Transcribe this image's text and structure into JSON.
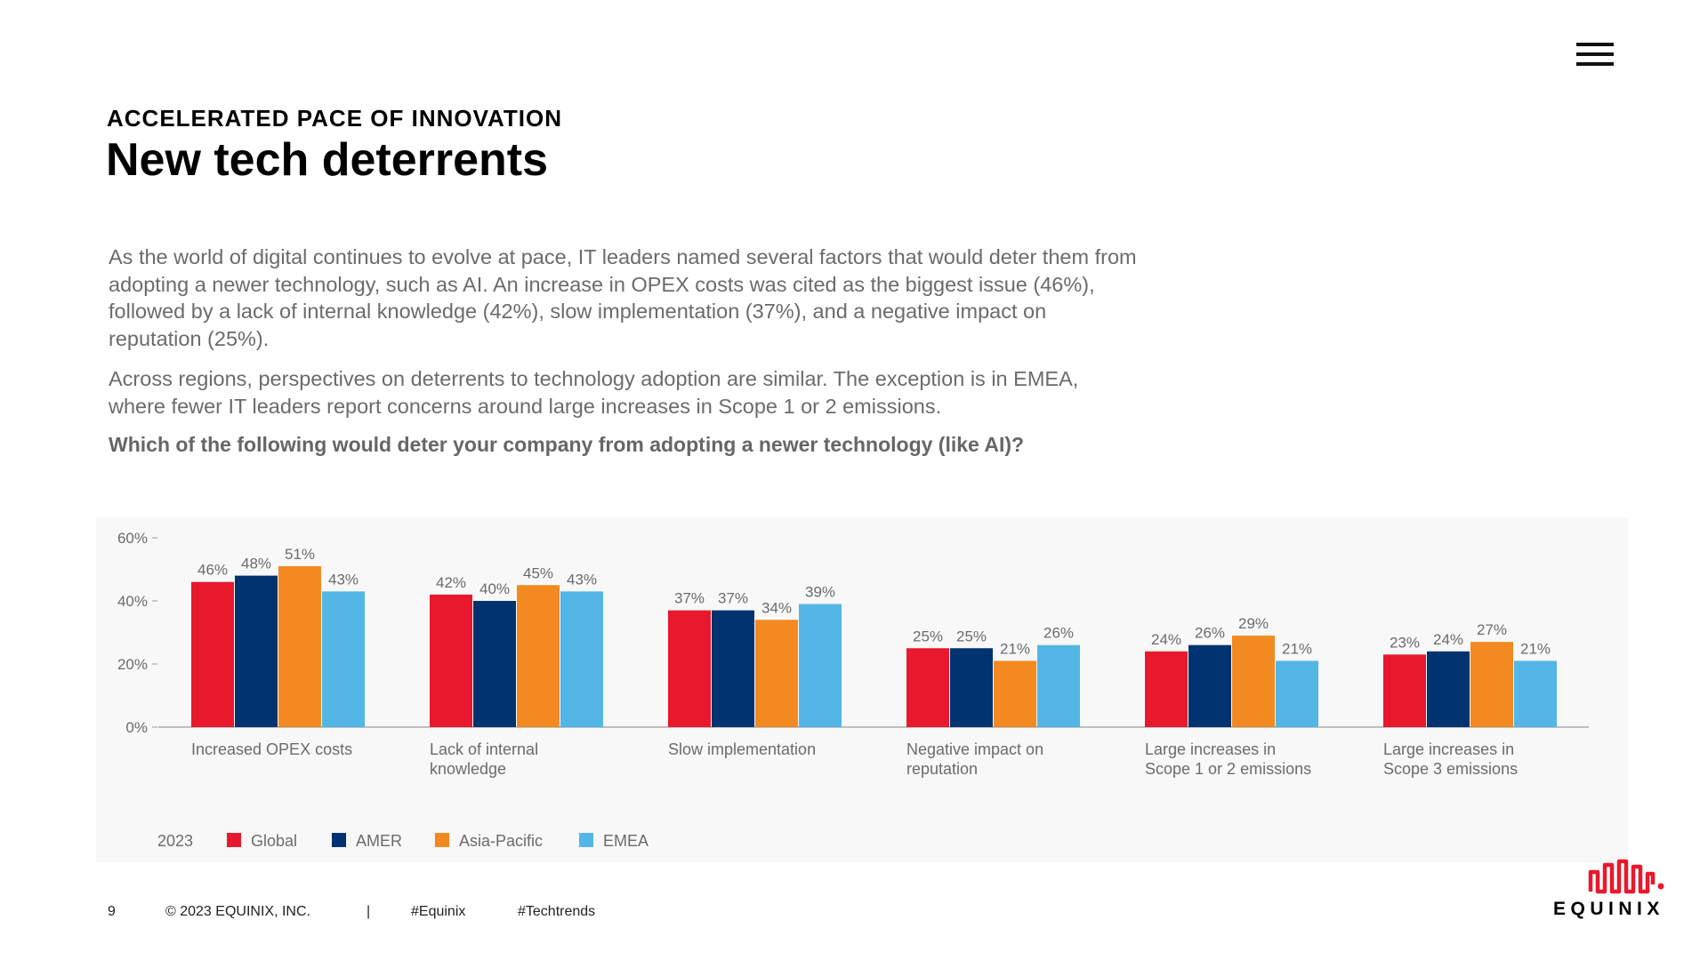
{
  "header": {
    "eyebrow": "ACCELERATED PACE OF INNOVATION",
    "title": "New tech deterrents"
  },
  "body": {
    "paragraph1": "As the world of digital continues to evolve at pace, IT leaders named several factors that would deter them from adopting a newer technology, such as AI. An increase in OPEX costs was cited as the biggest issue (46%), followed by a lack of internal knowledge (42%), slow implementation (37%), and a negative impact on reputation (25%).",
    "paragraph2": "Across regions, perspectives on deterrents to technology adoption are similar. The exception is in EMEA, where fewer IT leaders report concerns around large increases in Scope 1 or 2 emissions.",
    "question": "Which of the following would deter your company from adopting a newer technology (like AI)?"
  },
  "colors": {
    "global": "#e8192c",
    "amer": "#003370",
    "asia_pacific": "#f28a21",
    "emea": "#54b6e5",
    "axis": "#9a9a9a",
    "panel": "#f8f8f8",
    "label_text": "#6b6b6b"
  },
  "chart_data": {
    "type": "bar",
    "categories": [
      [
        "Increased OPEX costs"
      ],
      [
        "Lack of internal",
        "knowledge"
      ],
      [
        "Slow implementation"
      ],
      [
        "Negative impact on",
        "reputation"
      ],
      [
        "Large increases in",
        "Scope 1 or 2 emissions"
      ],
      [
        "Large increases in",
        "Scope 3 emissions"
      ]
    ],
    "series": [
      {
        "name": "Global",
        "color_key": "global",
        "values": [
          46,
          42,
          37,
          25,
          24,
          23
        ]
      },
      {
        "name": "AMER",
        "color_key": "amer",
        "values": [
          48,
          40,
          37,
          25,
          26,
          24
        ]
      },
      {
        "name": "Asia-Pacific",
        "color_key": "asia_pacific",
        "values": [
          51,
          45,
          34,
          21,
          29,
          27
        ]
      },
      {
        "name": "EMEA",
        "color_key": "emea",
        "values": [
          43,
          43,
          39,
          26,
          21,
          21
        ]
      }
    ],
    "value_suffix": "%",
    "yticks": [
      "0%",
      "20%",
      "40%",
      "60%"
    ],
    "ytick_values": [
      0,
      20,
      40,
      60
    ],
    "ylim": [
      0,
      60
    ],
    "legend_year": "2023",
    "legend_position": "bottom-left",
    "title": "",
    "xlabel": "",
    "ylabel": ""
  },
  "footer": {
    "page_number": "9",
    "copyright": "© 2023 EQUINIX, INC.",
    "separator": "|",
    "hashtag1": "#Equinix",
    "hashtag2": "#Techtrends"
  },
  "logo": {
    "text": "EQUINIX",
    "icon": "equinix-logo-icon"
  },
  "menu": {
    "icon": "hamburger-menu-icon"
  }
}
